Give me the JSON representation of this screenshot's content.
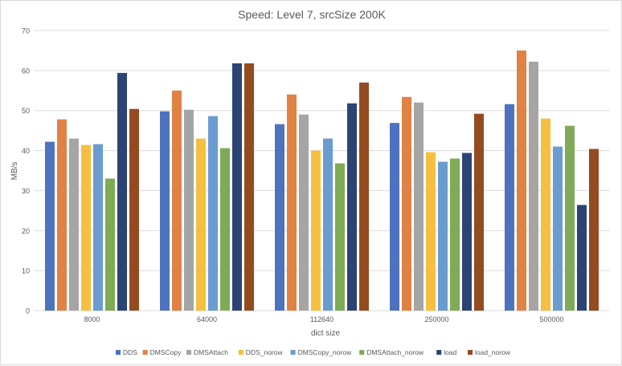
{
  "chart_data": {
    "type": "bar",
    "title": "Speed: Level 7, srcSize 200K",
    "xlabel": "dict size",
    "ylabel": "MB/s",
    "ylim": [
      0,
      70
    ],
    "yticks": [
      0,
      10,
      20,
      30,
      40,
      50,
      60,
      70
    ],
    "grid": true,
    "legend_position": "bottom",
    "categories": [
      "8000",
      "64000",
      "112640",
      "250000",
      "500000"
    ],
    "series": [
      {
        "name": "DDS",
        "color": "#4e73be",
        "values": [
          42.2,
          49.8,
          46.6,
          46.9,
          51.6
        ]
      },
      {
        "name": "DMSCopy",
        "color": "#e08244",
        "values": [
          47.8,
          55.0,
          54.0,
          53.4,
          65.0
        ]
      },
      {
        "name": "DMSAttach",
        "color": "#a5a5a5",
        "values": [
          43.0,
          50.2,
          49.0,
          52.0,
          62.2
        ]
      },
      {
        "name": "DDS_norow",
        "color": "#f6bf41",
        "values": [
          41.4,
          43.0,
          40.0,
          39.6,
          48.0
        ]
      },
      {
        "name": "DMSCopy_norow",
        "color": "#6a9ccf",
        "values": [
          41.6,
          48.6,
          43.0,
          37.2,
          41.0
        ]
      },
      {
        "name": "DMSAttach_norow",
        "color": "#7faa56",
        "values": [
          33.0,
          40.6,
          36.8,
          38.0,
          46.2
        ]
      },
      {
        "name": "load",
        "color": "#2b4474",
        "values": [
          59.4,
          61.8,
          51.8,
          39.4,
          26.4
        ]
      },
      {
        "name": "load_norow",
        "color": "#944b20",
        "values": [
          50.4,
          61.8,
          57.0,
          49.2,
          40.4
        ]
      }
    ]
  }
}
